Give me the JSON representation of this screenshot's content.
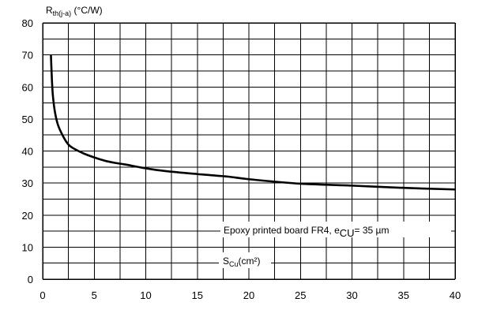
{
  "chart_data": {
    "type": "line",
    "ylabel_main": "R",
    "ylabel_sub": "th(j-a)",
    "ylabel_unit": " (°C/W)",
    "xlabel_main": "S",
    "xlabel_sub": "Cu",
    "xlabel_unit": "(cm²)",
    "annotation_main": "Epoxy printed board FR4, e",
    "annotation_sub": "CU",
    "annotation_tail": "= 35 µm",
    "xlim": [
      0,
      40
    ],
    "ylim": [
      0,
      80
    ],
    "x_ticks": [
      0,
      5,
      10,
      15,
      20,
      25,
      30,
      35,
      40
    ],
    "y_ticks": [
      0,
      10,
      20,
      30,
      40,
      50,
      60,
      70,
      80
    ],
    "x_tick_labels": [
      "0",
      "5",
      "10",
      "15",
      "20",
      "25",
      "30",
      "35",
      "40"
    ],
    "y_tick_labels": [
      "0",
      "10",
      "20",
      "30",
      "40",
      "50",
      "60",
      "70",
      "80"
    ],
    "grid": true,
    "series": [
      {
        "x": [
          0.8,
          0.9,
          1.0,
          1.2,
          1.5,
          2.0,
          2.5,
          3.0,
          4.0,
          5.0,
          6.0,
          7.0,
          8.0,
          10.0,
          12.0,
          15.0,
          18.0,
          20.0,
          25.0,
          30.0,
          35.0,
          40.0
        ],
        "values": [
          70,
          62,
          57,
          52,
          48,
          44.5,
          42,
          40.8,
          39.2,
          38,
          37,
          36.3,
          35.8,
          34.6,
          33.7,
          32.8,
          32,
          31.2,
          29.8,
          29.2,
          28.5,
          28
        ]
      }
    ],
    "color": "#000000"
  }
}
